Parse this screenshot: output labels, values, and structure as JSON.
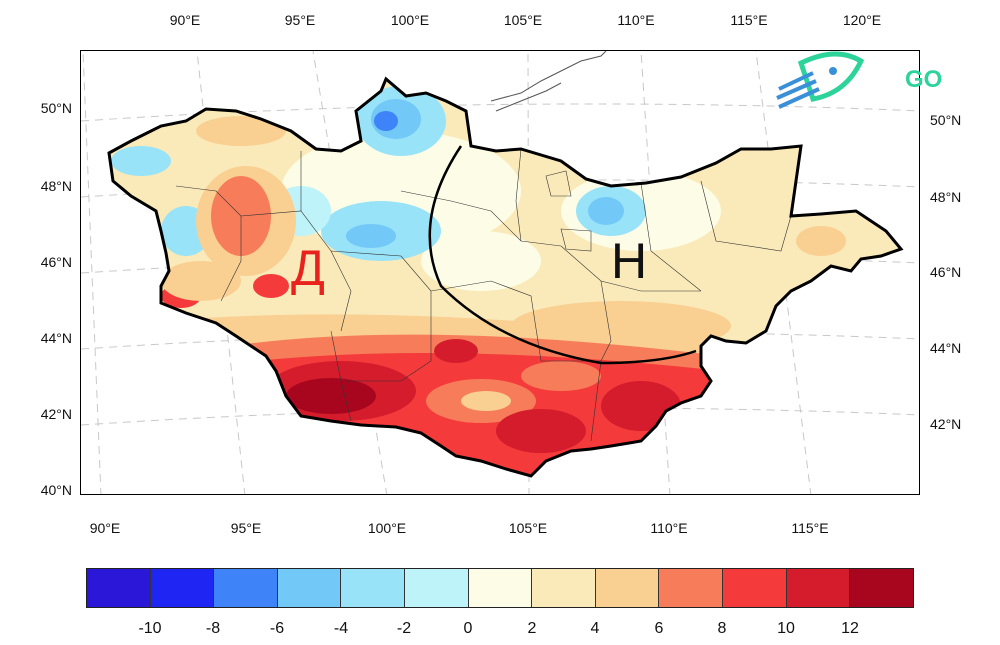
{
  "map": {
    "top_lon_labels": [
      "90°E",
      "95°E",
      "100°E",
      "105°E",
      "110°E",
      "115°E",
      "120°E"
    ],
    "bottom_lon_labels": [
      "90°E",
      "95°E",
      "100°E",
      "105°E",
      "110°E",
      "115°E"
    ],
    "left_lat_labels": [
      "50°N",
      "48°N",
      "46°N",
      "44°N",
      "42°N",
      "40°N"
    ],
    "right_lat_labels": [
      "50°N",
      "48°N",
      "46°N",
      "44°N",
      "42°N"
    ],
    "region_west_label": "Д",
    "region_east_label": "H",
    "west_label_color": "#e8231e",
    "east_label_color": "#111111"
  },
  "colorbar": {
    "ticks": [
      "-10",
      "-8",
      "-6",
      "-4",
      "-2",
      "0",
      "2",
      "4",
      "6",
      "8",
      "10",
      "12"
    ],
    "colors": [
      "#2a17d8",
      "#1f25f2",
      "#3e83f7",
      "#72c8f7",
      "#98e3f8",
      "#bff3fa",
      "#fdfde7",
      "#faeab9",
      "#f9cf92",
      "#f77c5a",
      "#f43a3a",
      "#d51c2d",
      "#a8061e"
    ]
  },
  "logo": {
    "text": "GO",
    "color": "#2dd49a",
    "icon": "rocket-icon"
  }
}
